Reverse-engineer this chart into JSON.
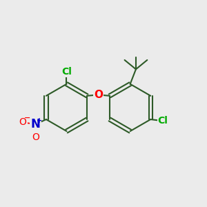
{
  "background_color": "#ebebeb",
  "bond_color": "#2d5a27",
  "bond_width": 1.5,
  "atom_colors": {
    "Cl": "#00aa00",
    "O": "#ff0000",
    "N": "#0000cc",
    "O_nitro": "#ff0000"
  },
  "font_size_Cl": 10,
  "font_size_O": 11,
  "font_size_N": 12,
  "fig_size": [
    3.0,
    3.0
  ],
  "dpi": 100,
  "xlim": [
    0,
    10
  ],
  "ylim": [
    0,
    10
  ]
}
